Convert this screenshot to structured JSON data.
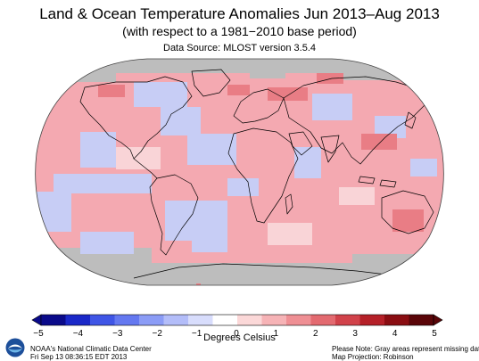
{
  "header": {
    "title": "Land & Ocean Temperature Anomalies Jun 2013–Aug 2013",
    "subtitle": "(with respect to a 1981−2010 base period)",
    "source": "Data Source: MLOST version 3.5.4"
  },
  "colorbar": {
    "tick_labels": [
      "−5",
      "−4",
      "−3",
      "−2",
      "−1",
      "0",
      "1",
      "2",
      "3",
      "4",
      "5"
    ],
    "units": "Degrees Celsius",
    "range": [
      -5,
      5
    ],
    "colors": [
      "#0a0a8a",
      "#1a28c8",
      "#3f55e6",
      "#6478f0",
      "#8b9cf6",
      "#b3bdf9",
      "#d8ddfc",
      "#ffffff",
      "#fbd8d8",
      "#f6b3b6",
      "#ef8f94",
      "#e36a70",
      "#d1424a",
      "#b52028",
      "#8a0d12",
      "#5a0508"
    ]
  },
  "map": {
    "projection_note": "Robinson",
    "missing_data_color": "#bdbdbd",
    "warm_color": "#f4a9b1",
    "cool_color": "#c7cdf5"
  },
  "footer": {
    "org": "NOAA's National Climatic Data Center",
    "date": "Fri Sep 13 08:36:15 EDT 2013",
    "note": "Please Note: Gray areas represent missing data",
    "projection": "Map Projection: Robinson"
  }
}
